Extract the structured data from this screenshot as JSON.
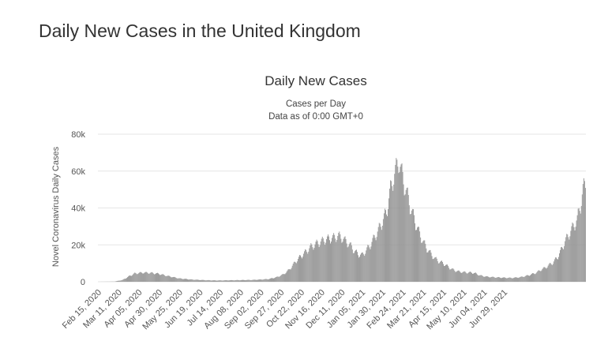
{
  "page": {
    "title": "Daily New Cases in the United Kingdom"
  },
  "chart_data": {
    "type": "bar",
    "title": "Daily New Cases",
    "subtitle_lines": [
      "Cases per Day",
      "Data as of 0:00 GMT+0"
    ],
    "xlabel": "",
    "ylabel": "Novel Coronavirus Daily Cases",
    "ylim": [
      0,
      80000
    ],
    "yticks": [
      0,
      20000,
      40000,
      60000,
      80000
    ],
    "ytick_labels": [
      "0",
      "20k",
      "40k",
      "60k",
      "80k"
    ],
    "grid": true,
    "bar_color": "#8f8f8f",
    "start_date": "2020-02-15",
    "xtick_labels": [
      "Feb 15, 2020",
      "Mar 11, 2020",
      "Apr 05, 2020",
      "Apr 30, 2020",
      "May 25, 2020",
      "Jun 19, 2020",
      "Jul 14, 2020",
      "Aug 08, 2020",
      "Sep 02, 2020",
      "Sep 27, 2020",
      "Oct 22, 2020",
      "Nov 16, 2020",
      "Dec 11, 2020",
      "Jan 05, 2021",
      "Jan 30, 2021",
      "Feb 24, 2021",
      "Mar 21, 2021",
      "Apr 15, 2021",
      "May 10, 2021",
      "Jun 04, 2021",
      "Jun 29, 2021"
    ],
    "xtick_interval_days": 25,
    "anchors": [
      [
        0,
        0
      ],
      [
        20,
        100
      ],
      [
        30,
        1000
      ],
      [
        38,
        3000
      ],
      [
        45,
        4500
      ],
      [
        55,
        5000
      ],
      [
        65,
        4800
      ],
      [
        75,
        4300
      ],
      [
        85,
        3200
      ],
      [
        100,
        1800
      ],
      [
        115,
        1200
      ],
      [
        130,
        900
      ],
      [
        145,
        700
      ],
      [
        160,
        800
      ],
      [
        175,
        900
      ],
      [
        190,
        1000
      ],
      [
        200,
        1200
      ],
      [
        210,
        1500
      ],
      [
        220,
        2500
      ],
      [
        228,
        4000
      ],
      [
        235,
        6500
      ],
      [
        245,
        12000
      ],
      [
        255,
        16000
      ],
      [
        262,
        19000
      ],
      [
        270,
        21000
      ],
      [
        280,
        23000
      ],
      [
        290,
        24000
      ],
      [
        296,
        25000
      ],
      [
        300,
        24000
      ],
      [
        305,
        22000
      ],
      [
        310,
        20000
      ],
      [
        315,
        17000
      ],
      [
        320,
        15000
      ],
      [
        325,
        14500
      ],
      [
        330,
        17000
      ],
      [
        335,
        20000
      ],
      [
        340,
        24000
      ],
      [
        345,
        28000
      ],
      [
        350,
        33000
      ],
      [
        355,
        38000
      ],
      [
        360,
        50000
      ],
      [
        363,
        56000
      ],
      [
        367,
        61000
      ],
      [
        370,
        67000
      ],
      [
        373,
        60000
      ],
      [
        376,
        55000
      ],
      [
        380,
        48000
      ],
      [
        385,
        40000
      ],
      [
        390,
        33000
      ],
      [
        395,
        27000
      ],
      [
        400,
        22000
      ],
      [
        405,
        18000
      ],
      [
        410,
        15000
      ],
      [
        415,
        12500
      ],
      [
        420,
        11000
      ],
      [
        425,
        10000
      ],
      [
        430,
        8500
      ],
      [
        435,
        7000
      ],
      [
        440,
        6000
      ],
      [
        445,
        5500
      ],
      [
        450,
        5200
      ],
      [
        455,
        5000
      ],
      [
        460,
        5000
      ],
      [
        465,
        4500
      ],
      [
        470,
        3500
      ],
      [
        475,
        3000
      ],
      [
        480,
        2700
      ],
      [
        490,
        2400
      ],
      [
        500,
        2200
      ],
      [
        510,
        2100
      ],
      [
        520,
        2500
      ],
      [
        530,
        3500
      ],
      [
        540,
        5000
      ],
      [
        545,
        6500
      ],
      [
        550,
        7500
      ],
      [
        555,
        9000
      ],
      [
        560,
        10500
      ],
      [
        565,
        13000
      ],
      [
        570,
        17000
      ],
      [
        575,
        22000
      ],
      [
        580,
        26000
      ],
      [
        585,
        30000
      ],
      [
        590,
        34000
      ],
      [
        594,
        42000
      ],
      [
        597,
        50000
      ],
      [
        600,
        53000
      ]
    ],
    "values": [],
    "n_days": 601
  }
}
